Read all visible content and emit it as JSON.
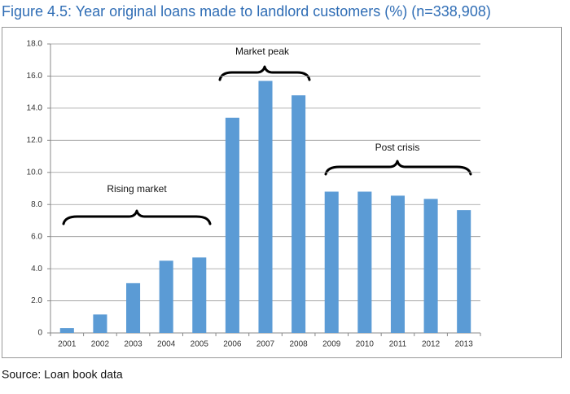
{
  "chart_data": {
    "type": "bar",
    "title": "Figure 4.5: Year original loans made to landlord customers (%) (n=338,908)",
    "categories": [
      "2001",
      "2002",
      "2003",
      "2004",
      "2005",
      "2006",
      "2007",
      "2008",
      "2009",
      "2010",
      "2011",
      "2012",
      "2013"
    ],
    "values": [
      0.3,
      1.15,
      3.1,
      4.5,
      4.7,
      13.4,
      15.7,
      14.8,
      8.8,
      8.8,
      8.55,
      8.35,
      7.65
    ],
    "color": "#5b9bd5",
    "ylim": [
      0,
      18
    ],
    "yticks": [
      0,
      {
        "value": 2,
        "label": "2.0"
      },
      {
        "value": 4,
        "label": "4.0"
      },
      {
        "value": 6,
        "label": "6.0"
      },
      {
        "value": 8,
        "label": "8.0"
      },
      {
        "value": 10,
        "label": "10.0"
      },
      {
        "value": 12,
        "label": "12.0"
      },
      {
        "value": 14,
        "label": "14.0"
      },
      {
        "value": 16,
        "label": "16.0"
      },
      {
        "value": 18,
        "label": "18.0"
      }
    ],
    "grid": true,
    "annotations": [
      "Rising market",
      "Market peak",
      "Post crisis"
    ],
    "source": "Source: Loan book data"
  }
}
